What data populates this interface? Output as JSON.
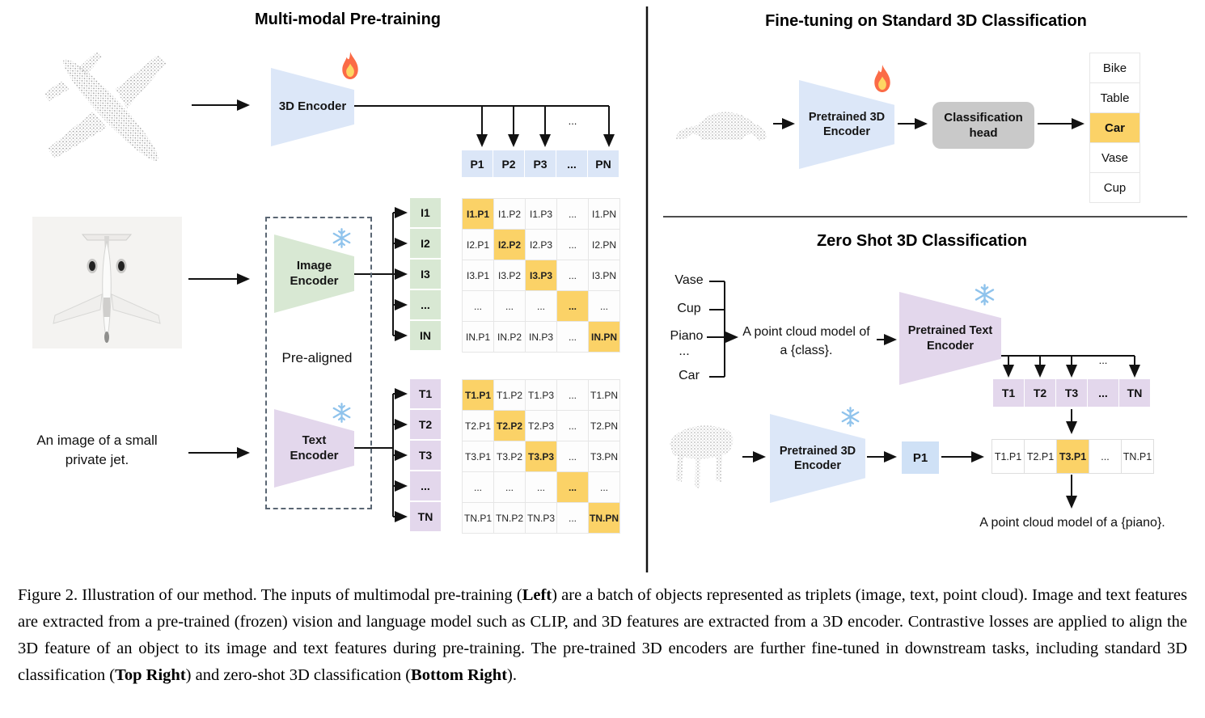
{
  "pretraining": {
    "title": "Multi-modal Pre-training",
    "encoder_3d_label": "3D Encoder",
    "p_row": [
      "P1",
      "P2",
      "P3",
      "...",
      "PN"
    ],
    "image_encoder_label": [
      "Image",
      "Encoder"
    ],
    "text_encoder_label": [
      "Text",
      "Encoder"
    ],
    "prealigned_label": "Pre-aligned",
    "image_caption": [
      "An image of a small",
      "private jet."
    ],
    "dots": "...",
    "i_labels": [
      "I1",
      "I2",
      "I3",
      "...",
      "IN"
    ],
    "t_labels": [
      "T1",
      "T2",
      "T3",
      "...",
      "TN"
    ],
    "i_matrix": [
      [
        "I1.P1",
        "I1.P2",
        "I1.P3",
        "...",
        "I1.PN"
      ],
      [
        "I2.P1",
        "I2.P2",
        "I2.P3",
        "...",
        "I2.PN"
      ],
      [
        "I3.P1",
        "I3.P2",
        "I3.P3",
        "...",
        "I3.PN"
      ],
      [
        "...",
        "...",
        "...",
        "...",
        "..."
      ],
      [
        "IN.P1",
        "IN.P2",
        "IN.P3",
        "...",
        "IN.PN"
      ]
    ],
    "t_matrix": [
      [
        "T1.P1",
        "T1.P2",
        "T1.P3",
        "...",
        "T1.PN"
      ],
      [
        "T2.P1",
        "T2.P2",
        "T2.P3",
        "...",
        "T2.PN"
      ],
      [
        "T3.P1",
        "T3.P2",
        "T3.P3",
        "...",
        "T3.PN"
      ],
      [
        "...",
        "...",
        "...",
        "...",
        "..."
      ],
      [
        "TN.P1",
        "TN.P2",
        "TN.P3",
        "...",
        "TN.PN"
      ]
    ]
  },
  "finetune": {
    "title": "Fine-tuning on Standard 3D Classification",
    "encoder_label": [
      "Pretrained 3D",
      "Encoder"
    ],
    "head_label": [
      "Classification",
      "head"
    ],
    "classes": [
      "Bike",
      "Table",
      "Car",
      "Vase",
      "Cup"
    ],
    "highlighted_class": "Car"
  },
  "zeroshot": {
    "title": "Zero Shot 3D Classification",
    "candidate_classes": [
      "Vase",
      "Cup",
      "Piano",
      "...",
      "Car"
    ],
    "prompt": [
      "A point cloud model of",
      "a {class}."
    ],
    "text_encoder_label": [
      "Pretrained Text",
      "Encoder"
    ],
    "dots": "...",
    "t_row": [
      "T1",
      "T2",
      "T3",
      "...",
      "TN"
    ],
    "encoder_label": [
      "Pretrained 3D",
      "Encoder"
    ],
    "p_box_label": "P1",
    "sim_row": [
      "T1.P1",
      "T2.P1",
      "T3.P1",
      "...",
      "TN.P1"
    ],
    "highlighted_sim": "T3.P1",
    "result_text": "A point cloud model of a {piano}."
  },
  "colors": {
    "blue": "#dce7f8",
    "green": "#d8e8d3",
    "purple": "#e3d7ec",
    "orange": "#fbd267",
    "gray": "#c9c9c9"
  },
  "caption": {
    "segments": [
      {
        "text": "Figure 2. Illustration of our method. The inputs of multimodal pre-training (",
        "bold": false
      },
      {
        "text": "Left",
        "bold": true
      },
      {
        "text": ") are a batch of objects represented as triplets (image, text, point cloud). Image and text features are extracted from a pre-trained (frozen) vision and language model such as CLIP, and 3D features are extracted from a 3D encoder. Contrastive losses are applied to align the 3D feature of an object to its image and text features during pre-training. The pre-trained 3D encoders are further fine-tuned in downstream tasks, including standard 3D classification (",
        "bold": false
      },
      {
        "text": "Top Right",
        "bold": true
      },
      {
        "text": ") and zero-shot 3D classification (",
        "bold": false
      },
      {
        "text": "Bottom Right",
        "bold": true
      },
      {
        "text": ").",
        "bold": false
      }
    ]
  }
}
